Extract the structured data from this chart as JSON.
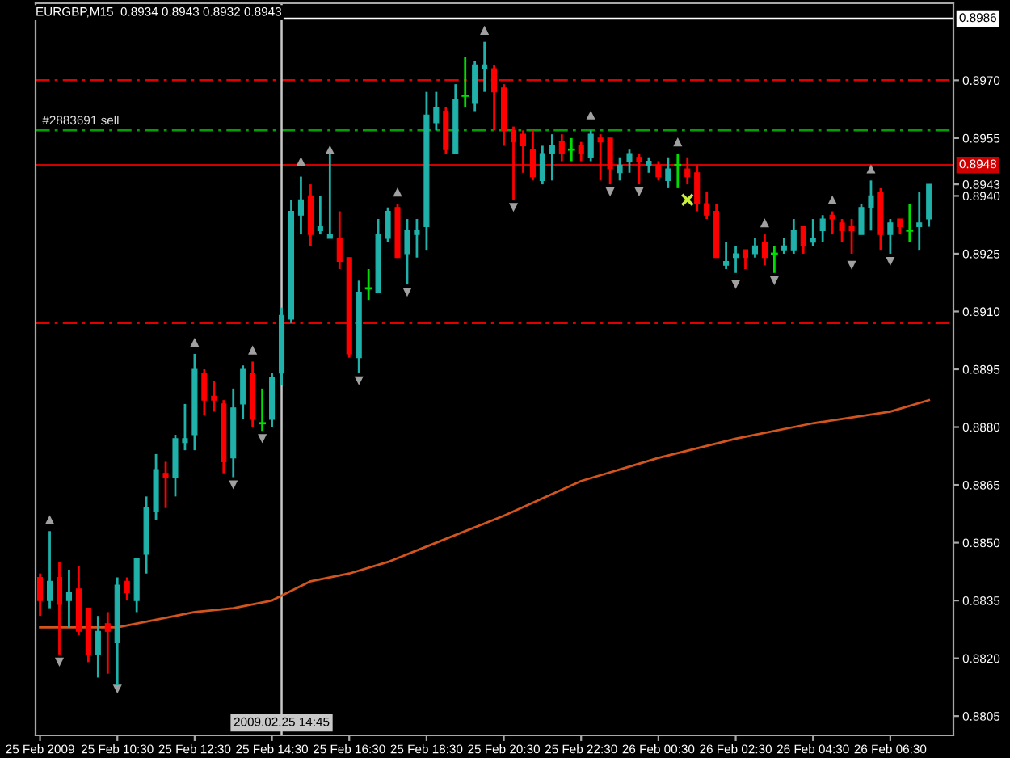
{
  "chart_data": {
    "type": "candlestick",
    "title": "EURGBP,M15  0.8934 0.8943 0.8932 0.8943",
    "x": [
      "2009-02-25T08:30",
      "2009-02-25T08:45",
      "2009-02-25T09:00",
      "2009-02-25T09:15",
      "2009-02-25T09:30",
      "2009-02-25T09:45",
      "2009-02-25T10:00",
      "2009-02-25T10:15",
      "2009-02-25T10:30",
      "2009-02-25T10:45",
      "2009-02-25T11:00",
      "2009-02-25T11:15",
      "2009-02-25T11:30",
      "2009-02-25T11:45",
      "2009-02-25T12:00",
      "2009-02-25T12:15",
      "2009-02-25T12:30",
      "2009-02-25T12:45",
      "2009-02-25T13:00",
      "2009-02-25T13:15",
      "2009-02-25T13:30",
      "2009-02-25T13:45",
      "2009-02-25T14:00",
      "2009-02-25T14:15",
      "2009-02-25T14:30",
      "2009-02-25T14:45",
      "2009-02-25T15:00",
      "2009-02-25T15:15",
      "2009-02-25T15:30",
      "2009-02-25T15:45",
      "2009-02-25T16:00",
      "2009-02-25T16:15",
      "2009-02-25T16:30",
      "2009-02-25T16:45",
      "2009-02-25T17:00",
      "2009-02-25T17:15",
      "2009-02-25T17:30",
      "2009-02-25T17:45",
      "2009-02-25T18:00",
      "2009-02-25T18:15",
      "2009-02-25T18:30",
      "2009-02-25T18:45",
      "2009-02-25T19:00",
      "2009-02-25T19:15",
      "2009-02-25T19:30",
      "2009-02-25T19:45",
      "2009-02-25T20:00",
      "2009-02-25T20:15",
      "2009-02-25T20:30",
      "2009-02-25T20:45",
      "2009-02-25T21:00",
      "2009-02-25T21:15",
      "2009-02-25T21:30",
      "2009-02-25T21:45",
      "2009-02-25T22:00",
      "2009-02-25T22:15",
      "2009-02-25T22:30",
      "2009-02-25T22:45",
      "2009-02-25T23:00",
      "2009-02-25T23:15",
      "2009-02-25T23:30",
      "2009-02-25T23:45",
      "2009-02-26T00:00",
      "2009-02-26T00:15",
      "2009-02-26T00:30",
      "2009-02-26T00:45",
      "2009-02-26T01:00",
      "2009-02-26T01:15",
      "2009-02-26T01:30",
      "2009-02-26T01:45",
      "2009-02-26T02:00",
      "2009-02-26T02:15",
      "2009-02-26T02:30",
      "2009-02-26T02:45",
      "2009-02-26T03:00",
      "2009-02-26T03:15",
      "2009-02-26T03:30",
      "2009-02-26T03:45",
      "2009-02-26T04:00",
      "2009-02-26T04:15",
      "2009-02-26T04:30",
      "2009-02-26T04:45",
      "2009-02-26T05:00",
      "2009-02-26T05:15",
      "2009-02-26T05:30",
      "2009-02-26T05:45",
      "2009-02-26T06:00",
      "2009-02-26T06:15",
      "2009-02-26T06:30",
      "2009-02-26T06:45",
      "2009-02-26T07:00",
      "2009-02-26T07:15",
      "2009-02-26T07:30"
    ],
    "ohlc": [
      [
        0.8841,
        0.8842,
        0.8831,
        0.8835
      ],
      [
        0.8835,
        0.8853,
        0.8833,
        0.884
      ],
      [
        0.8841,
        0.8845,
        0.8821,
        0.8834
      ],
      [
        0.8835,
        0.8843,
        0.8828,
        0.8837
      ],
      [
        0.8838,
        0.8844,
        0.8826,
        0.8827
      ],
      [
        0.8833,
        0.8833,
        0.8819,
        0.8821
      ],
      [
        0.8821,
        0.8831,
        0.8815,
        0.8827
      ],
      [
        0.8829,
        0.8832,
        0.8816,
        0.8827
      ],
      [
        0.8824,
        0.8841,
        0.8813,
        0.8839
      ],
      [
        0.884,
        0.8841,
        0.8835,
        0.8837
      ],
      [
        0.8835,
        0.8846,
        0.8832,
        0.8846
      ],
      [
        0.8847,
        0.8862,
        0.8842,
        0.8859
      ],
      [
        0.8858,
        0.8873,
        0.8856,
        0.8869
      ],
      [
        0.8868,
        0.8871,
        0.8859,
        0.8867
      ],
      [
        0.8867,
        0.8878,
        0.8862,
        0.8877
      ],
      [
        0.8876,
        0.8886,
        0.8874,
        0.8877
      ],
      [
        0.8878,
        0.8899,
        0.8874,
        0.8895
      ],
      [
        0.8894,
        0.8895,
        0.8883,
        0.8887
      ],
      [
        0.8888,
        0.8892,
        0.8884,
        0.8887
      ],
      [
        0.8886,
        0.8887,
        0.8868,
        0.8871
      ],
      [
        0.8872,
        0.889,
        0.8867,
        0.8885
      ],
      [
        0.8886,
        0.8896,
        0.8882,
        0.8895
      ],
      [
        0.8894,
        0.8897,
        0.888,
        0.8882
      ],
      [
        0.8881,
        0.889,
        0.8879,
        0.8881
      ],
      [
        0.8882,
        0.8894,
        0.888,
        0.8893
      ],
      [
        0.8894,
        0.8911,
        0.8891,
        0.8909
      ],
      [
        0.8908,
        0.8939,
        0.8907,
        0.8936
      ],
      [
        0.8935,
        0.8945,
        0.893,
        0.8939
      ],
      [
        0.894,
        0.8943,
        0.8927,
        0.893
      ],
      [
        0.8931,
        0.894,
        0.893,
        0.8932
      ],
      [
        0.8929,
        0.8951,
        0.8929,
        0.893
      ],
      [
        0.8929,
        0.8936,
        0.8921,
        0.8923
      ],
      [
        0.8924,
        0.8924,
        0.8898,
        0.8899
      ],
      [
        0.8898,
        0.8918,
        0.8894,
        0.8915
      ],
      [
        0.8916,
        0.8921,
        0.8913,
        0.8916
      ],
      [
        0.8915,
        0.8934,
        0.8915,
        0.893
      ],
      [
        0.8929,
        0.8937,
        0.8928,
        0.8936
      ],
      [
        0.8937,
        0.8938,
        0.8924,
        0.8924
      ],
      [
        0.8925,
        0.8934,
        0.8917,
        0.8931
      ],
      [
        0.893,
        0.8934,
        0.8924,
        0.8931
      ],
      [
        0.8932,
        0.8967,
        0.8926,
        0.8961
      ],
      [
        0.8959,
        0.8967,
        0.8957,
        0.8963
      ],
      [
        0.8962,
        0.8963,
        0.8951,
        0.8952
      ],
      [
        0.8951,
        0.8969,
        0.8951,
        0.8965
      ],
      [
        0.8966,
        0.8976,
        0.8963,
        0.8966
      ],
      [
        0.8964,
        0.8975,
        0.8962,
        0.8974
      ],
      [
        0.8973,
        0.898,
        0.8967,
        0.8974
      ],
      [
        0.8973,
        0.8974,
        0.8957,
        0.8967
      ],
      [
        0.8968,
        0.8969,
        0.8953,
        0.8957
      ],
      [
        0.8957,
        0.8958,
        0.8939,
        0.8954
      ],
      [
        0.8956,
        0.8957,
        0.8946,
        0.8953
      ],
      [
        0.8952,
        0.8957,
        0.8944,
        0.8945
      ],
      [
        0.8944,
        0.8953,
        0.8943,
        0.8951
      ],
      [
        0.8951,
        0.8956,
        0.8944,
        0.8953
      ],
      [
        0.8954,
        0.8956,
        0.8949,
        0.8951
      ],
      [
        0.8952,
        0.8955,
        0.8949,
        0.8952
      ],
      [
        0.8953,
        0.8954,
        0.8949,
        0.8951
      ],
      [
        0.895,
        0.8957,
        0.8949,
        0.8956
      ],
      [
        0.8955,
        0.8956,
        0.8944,
        0.8954
      ],
      [
        0.8955,
        0.8955,
        0.8943,
        0.8947
      ],
      [
        0.8946,
        0.895,
        0.8944,
        0.8948
      ],
      [
        0.8949,
        0.8952,
        0.8946,
        0.8951
      ],
      [
        0.895,
        0.8951,
        0.8943,
        0.8949
      ],
      [
        0.8948,
        0.895,
        0.8946,
        0.8949
      ],
      [
        0.8948,
        0.8949,
        0.8944,
        0.8945
      ],
      [
        0.8944,
        0.895,
        0.8942,
        0.8947
      ],
      [
        0.8948,
        0.8951,
        0.8942,
        0.8948
      ],
      [
        0.8947,
        0.895,
        0.8943,
        0.8945
      ],
      [
        0.8946,
        0.8948,
        0.8936,
        0.8938
      ],
      [
        0.8938,
        0.8941,
        0.8934,
        0.8935
      ],
      [
        0.8936,
        0.8938,
        0.8924,
        0.8924
      ],
      [
        0.8922,
        0.8928,
        0.8921,
        0.8923
      ],
      [
        0.8924,
        0.8927,
        0.892,
        0.8925
      ],
      [
        0.8926,
        0.8926,
        0.8921,
        0.8924
      ],
      [
        0.8925,
        0.8929,
        0.8924,
        0.8927
      ],
      [
        0.8928,
        0.893,
        0.8922,
        0.8924
      ],
      [
        0.8925,
        0.8927,
        0.892,
        0.8925
      ],
      [
        0.8926,
        0.8929,
        0.8925,
        0.8927
      ],
      [
        0.8926,
        0.8934,
        0.8925,
        0.8931
      ],
      [
        0.8932,
        0.8932,
        0.8925,
        0.8927
      ],
      [
        0.8928,
        0.8934,
        0.8927,
        0.8929
      ],
      [
        0.8931,
        0.8935,
        0.8928,
        0.8934
      ],
      [
        0.8935,
        0.8936,
        0.893,
        0.8934
      ],
      [
        0.8933,
        0.8934,
        0.8928,
        0.8931
      ],
      [
        0.8932,
        0.8934,
        0.8925,
        0.8931
      ],
      [
        0.893,
        0.8938,
        0.893,
        0.8937
      ],
      [
        0.8937,
        0.8944,
        0.8931,
        0.894
      ],
      [
        0.8941,
        0.8942,
        0.8926,
        0.893
      ],
      [
        0.893,
        0.8934,
        0.8925,
        0.8933
      ],
      [
        0.8934,
        0.8934,
        0.893,
        0.8932
      ],
      [
        0.8931,
        0.8938,
        0.8928,
        0.8931
      ],
      [
        0.8932,
        0.8941,
        0.8926,
        0.8933
      ],
      [
        0.8934,
        0.8943,
        0.8932,
        0.8943
      ]
    ],
    "colors": [
      "#ff0000",
      "#20b2aa",
      "#ff0000",
      "#20b2aa",
      "#ff0000",
      "#ff0000",
      "#20b2aa",
      "#ff0000",
      "#20b2aa",
      "#ff0000",
      "#20b2aa",
      "#20b2aa",
      "#20b2aa",
      "#ff0000",
      "#20b2aa",
      "#20b2aa",
      "#20b2aa",
      "#ff0000",
      "#ff0000",
      "#ff0000",
      "#20b2aa",
      "#20b2aa",
      "#ff0000",
      "#00dd00",
      "#20b2aa",
      "#20b2aa",
      "#20b2aa",
      "#20b2aa",
      "#ff0000",
      "#20b2aa",
      "#20b2aa",
      "#ff0000",
      "#ff0000",
      "#20b2aa",
      "#00dd00",
      "#20b2aa",
      "#20b2aa",
      "#ff0000",
      "#20b2aa",
      "#20b2aa",
      "#20b2aa",
      "#20b2aa",
      "#ff0000",
      "#20b2aa",
      "#00dd00",
      "#20b2aa",
      "#20b2aa",
      "#ff0000",
      "#ff0000",
      "#ff0000",
      "#ff0000",
      "#ff0000",
      "#20b2aa",
      "#20b2aa",
      "#ff0000",
      "#00dd00",
      "#ff0000",
      "#20b2aa",
      "#ff0000",
      "#ff0000",
      "#20b2aa",
      "#20b2aa",
      "#ff0000",
      "#20b2aa",
      "#ff0000",
      "#20b2aa",
      "#00dd00",
      "#ff0000",
      "#ff0000",
      "#ff0000",
      "#ff0000",
      "#20b2aa",
      "#20b2aa",
      "#ff0000",
      "#20b2aa",
      "#ff0000",
      "#00dd00",
      "#20b2aa",
      "#20b2aa",
      "#ff0000",
      "#20b2aa",
      "#20b2aa",
      "#ff0000",
      "#ff0000",
      "#ff0000",
      "#20b2aa",
      "#20b2aa",
      "#ff0000",
      "#20b2aa",
      "#ff0000",
      "#00dd00",
      "#20b2aa",
      "#20b2aa"
    ],
    "series": [
      {
        "type": "line",
        "color": "#d2541e",
        "x": [
          "2009-02-25T08:30",
          "2009-02-25T10:30",
          "2009-02-25T12:30",
          "2009-02-25T13:30",
          "2009-02-25T14:30",
          "2009-02-25T15:30",
          "2009-02-25T16:30",
          "2009-02-25T17:30",
          "2009-02-25T18:30",
          "2009-02-25T20:30",
          "2009-02-25T22:30",
          "2009-02-26T00:30",
          "2009-02-26T02:30",
          "2009-02-26T04:30",
          "2009-02-26T06:30",
          "2009-02-26T07:30"
        ],
        "values": [
          0.8828,
          0.8828,
          0.8832,
          0.8833,
          0.8835,
          0.884,
          0.8842,
          0.8845,
          0.8849,
          0.8857,
          0.8866,
          0.8872,
          0.8877,
          0.8881,
          0.8884,
          0.8887
        ]
      },
      {
        "type": "scatter",
        "marker": "triangle",
        "color": "#a0a0a0",
        "x": [
          "2009-02-25T08:45",
          "2009-02-25T12:30",
          "2009-02-25T14:00",
          "2009-02-25T15:15",
          "2009-02-25T16:00",
          "2009-02-25T17:45",
          "2009-02-25T20:00",
          "2009-02-25T22:45",
          "2009-02-26T01:00",
          "2009-02-26T03:15",
          "2009-02-26T05:00",
          "2009-02-26T06:00"
        ],
        "values": [
          0.8856,
          0.8902,
          0.89,
          0.8949,
          0.8952,
          0.8941,
          0.8983,
          0.8961,
          0.8954,
          0.8933,
          0.8939,
          0.8947
        ]
      },
      {
        "type": "scatter",
        "marker": "triangle_down",
        "color": "#a0a0a0",
        "x": [
          "2009-02-25T09:00",
          "2009-02-25T10:30",
          "2009-02-25T13:30",
          "2009-02-25T14:15",
          "2009-02-25T16:45",
          "2009-02-25T18:00",
          "2009-02-25T20:45",
          "2009-02-25T23:15",
          "2009-02-26T00:00",
          "2009-02-26T02:30",
          "2009-02-26T03:30",
          "2009-02-26T05:30",
          "2009-02-26T06:30"
        ],
        "values": [
          0.8819,
          0.8812,
          0.8865,
          0.8877,
          0.8892,
          0.8915,
          0.8937,
          0.8941,
          0.8941,
          0.8917,
          0.8918,
          0.8922,
          0.8923
        ]
      },
      {
        "type": "scatter",
        "marker": "cross",
        "color": "#c8f03c",
        "x": [
          "2009-02-26T01:15"
        ],
        "values": [
          0.8939
        ]
      }
    ],
    "ref_lines": [
      {
        "axis": "y",
        "value": 0.8986,
        "label": "0.8986",
        "color": "#ffffff",
        "line_style": "solid"
      },
      {
        "axis": "y",
        "value": 0.897,
        "color": "#e00000",
        "line_style": "dashed"
      },
      {
        "axis": "y",
        "value": 0.8957,
        "color": "#00a000",
        "line_style": "dashed"
      },
      {
        "axis": "y",
        "value": 0.8948,
        "label": "0.8948",
        "color": "#d00000",
        "line_style": "solid"
      },
      {
        "axis": "y",
        "value": 0.8907,
        "color": "#e00000",
        "line_style": "dashed"
      },
      {
        "axis": "x",
        "value": "2009-02-25T14:45",
        "label": "2009.02.25 14:45",
        "color": "#c8c8c8",
        "line_style": "solid"
      }
    ],
    "annotations": [
      {
        "text": "#2883691 sell",
        "x": "2009-02-25T08:30",
        "y": 0.8957
      }
    ],
    "xlim": [
      "2009-02-25T08:23",
      "2009-02-26T08:08"
    ],
    "xticks": [
      {
        "value": "2009-02-25T08:30",
        "label": "25 Feb 2009"
      },
      {
        "value": "2009-02-25T10:30",
        "label": "25 Feb 10:30"
      },
      {
        "value": "2009-02-25T12:30",
        "label": "25 Feb 12:30"
      },
      {
        "value": "2009-02-25T14:30",
        "label": "25 Feb 14:30"
      },
      {
        "value": "2009-02-25T16:30",
        "label": "25 Feb 16:30"
      },
      {
        "value": "2009-02-25T18:30",
        "label": "25 Feb 18:30"
      },
      {
        "value": "2009-02-25T20:30",
        "label": "25 Feb 20:30"
      },
      {
        "value": "2009-02-25T22:30",
        "label": "25 Feb 22:30"
      },
      {
        "value": "2009-02-26T00:30",
        "label": "26 Feb 00:30"
      },
      {
        "value": "2009-02-26T02:30",
        "label": "26 Feb 02:30"
      },
      {
        "value": "2009-02-26T04:30",
        "label": "26 Feb 04:30"
      },
      {
        "value": "2009-02-26T06:30",
        "label": "26 Feb 06:30"
      }
    ],
    "ylim": [
      0.88,
      0.899
    ],
    "yticks": [
      0.8805,
      {
        "value": 0.882,
        "label": "0.8820"
      },
      0.8835,
      {
        "value": 0.885,
        "label": "0.8850"
      },
      0.8865,
      {
        "value": 0.888,
        "label": "0.8880"
      },
      0.8895,
      {
        "value": 0.891,
        "label": "0.8910"
      },
      0.8925,
      {
        "value": 0.894,
        "label": "0.8940"
      },
      0.8943,
      0.8955,
      {
        "value": 0.897,
        "label": "0.8970"
      }
    ],
    "grid": false
  }
}
